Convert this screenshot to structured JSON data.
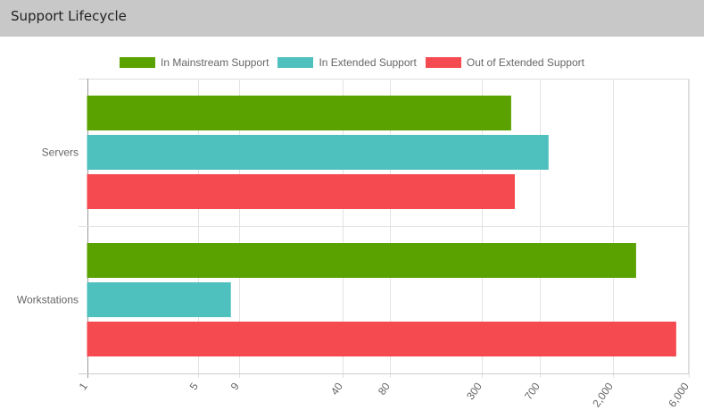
{
  "header": {
    "title": "Support Lifecycle"
  },
  "chart_data": {
    "type": "bar",
    "orientation": "horizontal",
    "categories": [
      "Servers",
      "Workstations"
    ],
    "series": [
      {
        "name": "In Mainstream Support",
        "color": "#5aa200",
        "values": [
          460,
          2800
        ]
      },
      {
        "name": "In Extended Support",
        "color": "#4ec0be",
        "values": [
          790,
          8
        ]
      },
      {
        "name": "Out of Extended Support",
        "color": "#f54a50",
        "values": [
          485,
          5000
        ]
      }
    ],
    "xscale": "log",
    "xlim": [
      1,
      6000
    ],
    "xticks": [
      1,
      5,
      9,
      40,
      80,
      300,
      700,
      2000,
      6000
    ],
    "xtick_labels": [
      "1",
      "5",
      "9",
      "40",
      "80",
      "300",
      "700",
      "2,000",
      "6,000"
    ],
    "grid": true,
    "legend": "top"
  }
}
